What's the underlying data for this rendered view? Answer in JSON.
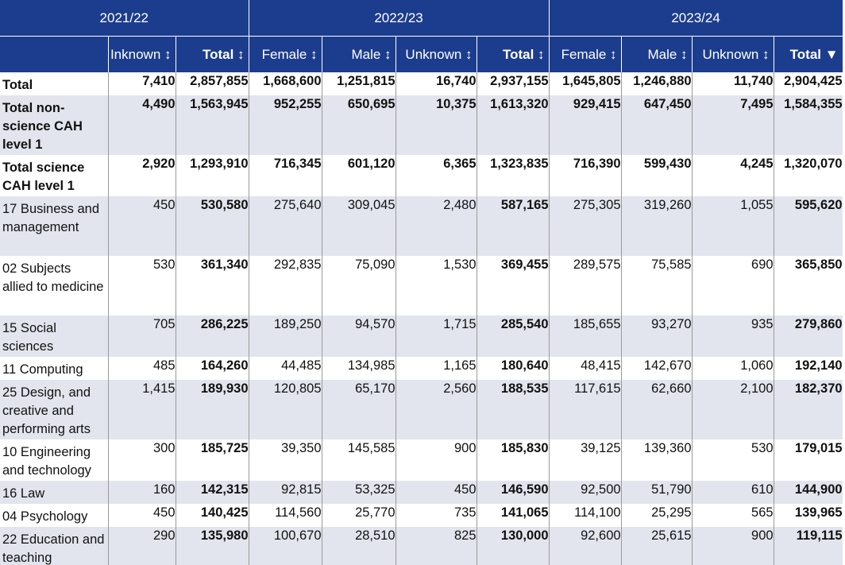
{
  "years": [
    "2021/22",
    "2022/23",
    "2023/24"
  ],
  "columns": {
    "y1": [
      "Inknown ↕",
      "Total ↕"
    ],
    "y2": [
      "Female ↕",
      "Male ↕",
      "Unknown ↕",
      "Total ↕"
    ],
    "y3": [
      "Female ↕",
      "Male ↕",
      "Unknown ↕",
      "Total ▼"
    ]
  },
  "rows": [
    {
      "label": "Total",
      "values": [
        "7,410",
        "2,857,855",
        "1,668,600",
        "1,251,815",
        "16,740",
        "2,937,155",
        "1,645,805",
        "1,246,880",
        "11,740",
        "2,904,425"
      ]
    },
    {
      "label": "Total non-science CAH level 1",
      "values": [
        "4,490",
        "1,563,945",
        "952,255",
        "650,695",
        "10,375",
        "1,613,320",
        "929,415",
        "647,450",
        "7,495",
        "1,584,355"
      ]
    },
    {
      "label": "Total science CAH level 1",
      "values": [
        "2,920",
        "1,293,910",
        "716,345",
        "601,120",
        "6,365",
        "1,323,835",
        "716,390",
        "599,430",
        "4,245",
        "1,320,070"
      ]
    },
    {
      "label": "17 Business and management",
      "values": [
        "450",
        "530,580",
        "275,640",
        "309,045",
        "2,480",
        "587,165",
        "275,305",
        "319,260",
        "1,055",
        "595,620"
      ]
    },
    {
      "label": "02 Subjects allied to medicine",
      "values": [
        "530",
        "361,340",
        "292,835",
        "75,090",
        "1,530",
        "369,455",
        "289,575",
        "75,585",
        "690",
        "365,850"
      ]
    },
    {
      "label": "15 Social sciences",
      "values": [
        "705",
        "286,225",
        "189,250",
        "94,570",
        "1,715",
        "285,540",
        "185,655",
        "93,270",
        "935",
        "279,860"
      ]
    },
    {
      "label": "11 Computing",
      "values": [
        "485",
        "164,260",
        "44,485",
        "134,985",
        "1,165",
        "180,640",
        "48,415",
        "142,670",
        "1,060",
        "192,140"
      ]
    },
    {
      "label": "25 Design, and creative and performing arts",
      "values": [
        "1,415",
        "189,930",
        "120,805",
        "65,170",
        "2,560",
        "188,535",
        "117,615",
        "62,660",
        "2,100",
        "182,370"
      ]
    },
    {
      "label": "10 Engineering and technology",
      "values": [
        "300",
        "185,725",
        "39,350",
        "145,585",
        "900",
        "185,830",
        "39,125",
        "139,360",
        "530",
        "179,015"
      ]
    },
    {
      "label": "16 Law",
      "values": [
        "160",
        "142,315",
        "92,815",
        "53,325",
        "450",
        "146,590",
        "92,500",
        "51,790",
        "610",
        "144,900"
      ]
    },
    {
      "label": "04 Psychology",
      "values": [
        "450",
        "140,425",
        "114,560",
        "25,770",
        "735",
        "141,065",
        "114,100",
        "25,295",
        "565",
        "139,965"
      ]
    },
    {
      "label": "22 Education and teaching",
      "values": [
        "290",
        "135,980",
        "100,670",
        "28,510",
        "825",
        "130,000",
        "92,600",
        "25,615",
        "900",
        "119,115"
      ]
    }
  ],
  "colors": {
    "header_bg": "#1c3d8d",
    "header_text": "#ffffff",
    "row_shade": "#e2e5ed",
    "row_white": "#ffffff",
    "gridline": "#9a9a9a"
  }
}
